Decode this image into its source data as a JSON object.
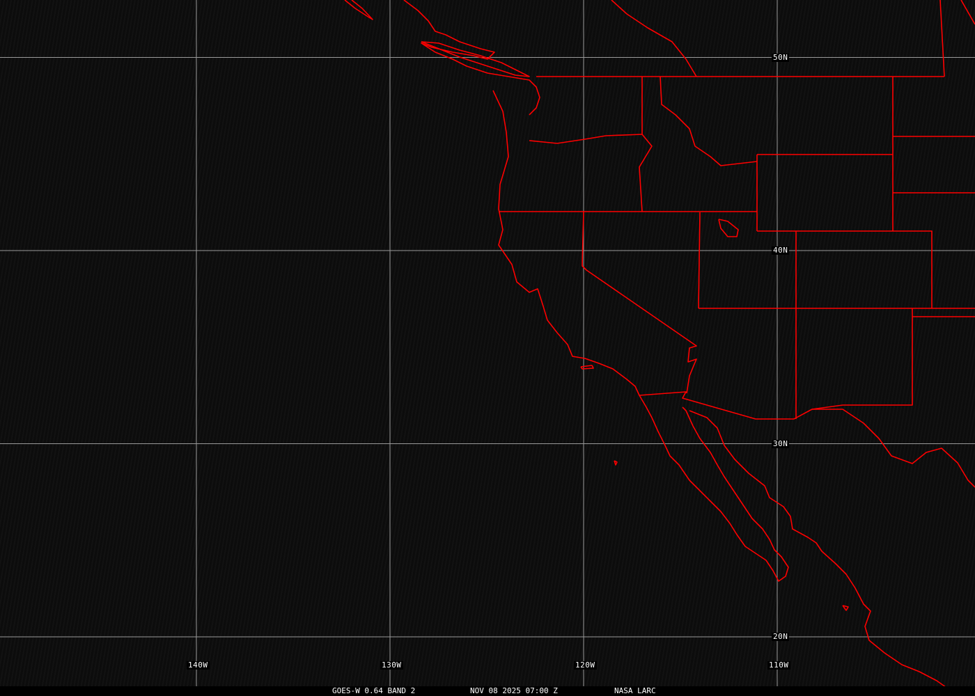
{
  "colors": {
    "grid": "#9a9a9a",
    "boundaries": "#ff0000",
    "background": "#0c0c0c",
    "text": "#ffffff"
  },
  "grid": {
    "longitudes": [
      {
        "value": -140,
        "label": "140W"
      },
      {
        "value": -130,
        "label": "130W"
      },
      {
        "value": -120,
        "label": "120W"
      },
      {
        "value": -110,
        "label": "110W"
      }
    ],
    "latitudes": [
      {
        "value": 50,
        "label": "50N"
      },
      {
        "value": 40,
        "label": "40N"
      },
      {
        "value": 30,
        "label": "30N"
      },
      {
        "value": 20,
        "label": "20N"
      }
    ]
  },
  "caption": {
    "product": "GOES-W 0.64 BAND 2",
    "datetime": "NOV 08 2025 07:00 Z",
    "source": "NASA LARC"
  }
}
